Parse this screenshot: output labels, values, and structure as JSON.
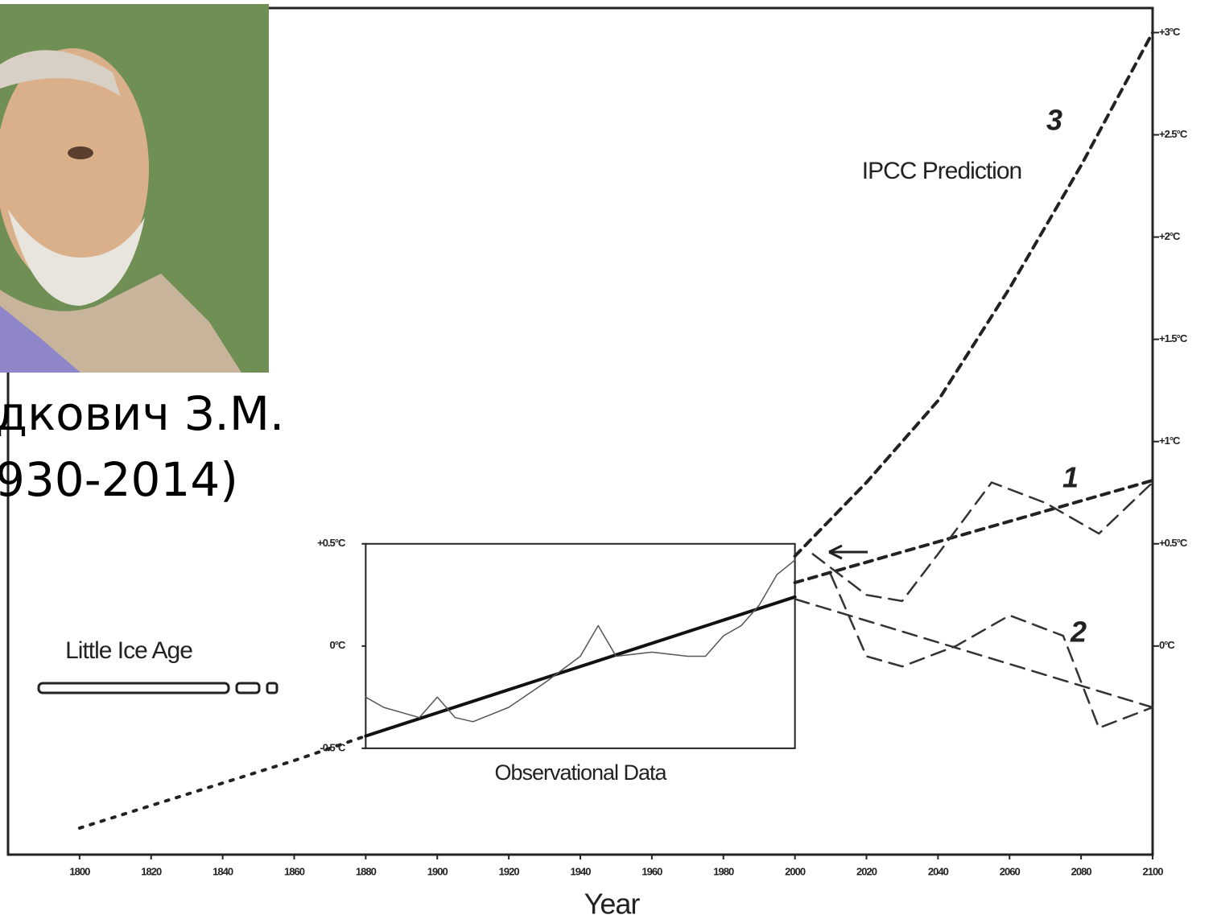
{
  "caption": {
    "line1": "дкович З.М.",
    "line2": "930-2014)"
  },
  "chart_data": {
    "type": "line",
    "xlabel": "Year",
    "xlim": [
      1780,
      2100
    ],
    "ylim": [
      -1.02,
      3.12
    ],
    "xticks": [
      1800,
      1820,
      1840,
      1860,
      1880,
      1900,
      1920,
      1940,
      1960,
      1980,
      2000,
      2020,
      2040,
      2060,
      2080,
      2100
    ],
    "yticks": [
      {
        "value": 3,
        "label": "+3°C"
      },
      {
        "value": 2.5,
        "label": "+2.5°C"
      },
      {
        "value": 2,
        "label": "+2°C"
      },
      {
        "value": 1.5,
        "label": "+1.5°C"
      },
      {
        "value": 1,
        "label": "+1°C"
      },
      {
        "value": 0.5,
        "label": "+0.5°C"
      },
      {
        "value": 0,
        "label": "0°C"
      }
    ],
    "inset": {
      "xlim": [
        1880,
        2000
      ],
      "ylim": [
        -0.5,
        0.5
      ],
      "label": "Observational Data",
      "yticks": [
        {
          "value": 0.5,
          "label": "+0.5°C"
        },
        {
          "value": 0,
          "label": "0°C"
        },
        {
          "value": -0.5,
          "label": "-0.5°C"
        }
      ]
    },
    "annotations": [
      "3",
      "IPCC Prediction",
      "1",
      "2",
      "Little Ice Age"
    ],
    "series": [
      {
        "color": "#222",
        "style": "dotted",
        "x": [
          1800,
          1820,
          1840,
          1860,
          1880
        ],
        "values": [
          -0.89,
          -0.78,
          -0.67,
          -0.56,
          -0.44
        ]
      },
      {
        "color": "#111",
        "style": "solid",
        "x": [
          1880,
          2000
        ],
        "values": [
          -0.44,
          0.24
        ]
      },
      {
        "color": "#555",
        "style": "thin",
        "x": [
          1880,
          1885,
          1895,
          1900,
          1905,
          1910,
          1920,
          1930,
          1940,
          1945,
          1950,
          1960,
          1970,
          1975,
          1980,
          1985,
          1990,
          1995,
          2000
        ],
        "values": [
          -0.25,
          -0.3,
          -0.35,
          -0.25,
          -0.35,
          -0.37,
          -0.3,
          -0.18,
          -0.05,
          0.1,
          -0.05,
          -0.03,
          -0.05,
          -0.05,
          0.05,
          0.1,
          0.2,
          0.35,
          0.42
        ]
      },
      {
        "color": "#222",
        "style": "dashed",
        "x": [
          2000,
          2020,
          2040,
          2060,
          2080,
          2100
        ],
        "values": [
          0.44,
          0.8,
          1.2,
          1.75,
          2.35,
          3.0
        ]
      },
      {
        "color": "#222",
        "style": "dashed",
        "x": [
          2000,
          2100
        ],
        "values": [
          0.31,
          0.81
        ]
      },
      {
        "color": "#333",
        "style": "longdash",
        "x": [
          2000,
          2100
        ],
        "values": [
          0.23,
          -0.3
        ]
      },
      {
        "color": "#333",
        "style": "longdash",
        "x": [
          2005,
          2020,
          2030,
          2040,
          2055,
          2070,
          2085,
          2100
        ],
        "values": [
          0.45,
          0.25,
          0.22,
          0.45,
          0.8,
          0.7,
          0.55,
          0.8
        ]
      },
      {
        "color": "#333",
        "style": "longdash",
        "x": [
          2010,
          2020,
          2030,
          2045,
          2060,
          2075,
          2085,
          2100
        ],
        "values": [
          0.35,
          -0.05,
          -0.1,
          0.0,
          0.15,
          0.05,
          -0.4,
          -0.3
        ]
      }
    ]
  }
}
